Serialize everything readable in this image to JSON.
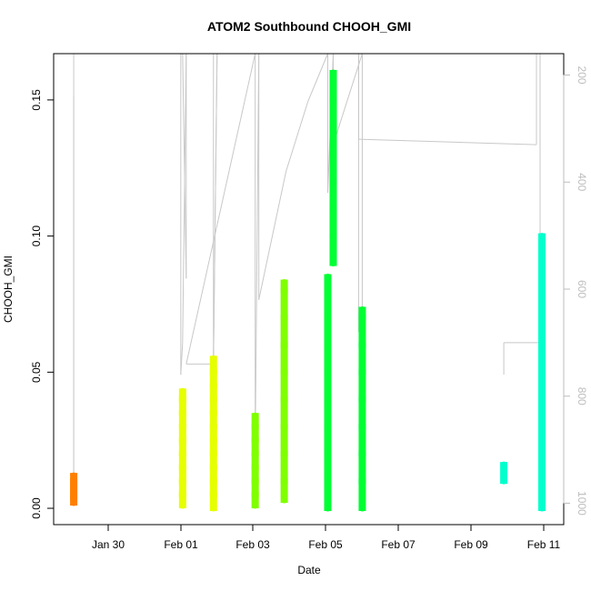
{
  "chart_data": {
    "type": "scatter",
    "title": "ATOM2 Southbound CHOOH_GMI",
    "xlabel": "Date",
    "ylabel": "CHOOH_GMI",
    "x_tick_labels": [
      "Jan 30",
      "Feb 01",
      "Feb 03",
      "Feb 05",
      "Feb 07",
      "Feb 09",
      "Feb 11"
    ],
    "x_ticks_days": [
      0,
      2,
      4,
      6,
      8,
      10,
      12
    ],
    "y_tick_labels": [
      "0.00",
      "0.05",
      "0.10",
      "0.15"
    ],
    "y_ticks": [
      0.0,
      0.05,
      0.1,
      0.15
    ],
    "ylim": [
      -0.006,
      0.167
    ],
    "right_axis": {
      "tick_labels": [
        "200",
        "400",
        "600",
        "800",
        "1000"
      ],
      "ticks": [
        200,
        400,
        600,
        800,
        1000
      ],
      "lim": [
        1040,
        160
      ],
      "color": "#bdbdbd"
    },
    "grid": false,
    "marker": "open-circle",
    "series": [
      {
        "color": "#ff8000",
        "points": [
          [
            -0.95,
            0.002
          ],
          [
            -0.95,
            0.004
          ],
          [
            -0.95,
            0.006
          ],
          [
            -0.95,
            0.008
          ],
          [
            -0.95,
            0.01
          ],
          [
            -0.95,
            0.012
          ]
        ]
      },
      {
        "color": "#e6ff00",
        "points": [
          [
            2.05,
            0.001
          ],
          [
            2.05,
            0.005
          ],
          [
            2.05,
            0.01
          ],
          [
            2.05,
            0.015
          ],
          [
            2.05,
            0.02
          ],
          [
            2.05,
            0.025
          ],
          [
            2.05,
            0.03
          ],
          [
            2.05,
            0.035
          ],
          [
            2.05,
            0.04
          ],
          [
            2.05,
            0.043
          ],
          [
            2.9,
            0.0
          ],
          [
            2.9,
            0.005
          ],
          [
            2.9,
            0.01
          ],
          [
            2.9,
            0.015
          ],
          [
            2.9,
            0.02
          ],
          [
            2.9,
            0.025
          ],
          [
            2.9,
            0.03
          ],
          [
            2.9,
            0.035
          ],
          [
            2.9,
            0.04
          ],
          [
            2.9,
            0.045
          ],
          [
            2.9,
            0.05
          ],
          [
            2.9,
            0.055
          ]
        ]
      },
      {
        "color": "#80ff00",
        "points": [
          [
            4.05,
            0.001
          ],
          [
            4.05,
            0.005
          ],
          [
            4.05,
            0.01
          ],
          [
            4.05,
            0.015
          ],
          [
            4.05,
            0.02
          ],
          [
            4.05,
            0.025
          ],
          [
            4.05,
            0.03
          ],
          [
            4.05,
            0.034
          ],
          [
            4.85,
            0.003
          ],
          [
            4.85,
            0.01
          ],
          [
            4.85,
            0.02
          ],
          [
            4.85,
            0.03
          ],
          [
            4.85,
            0.04
          ],
          [
            4.85,
            0.05
          ],
          [
            4.85,
            0.06
          ],
          [
            4.85,
            0.07
          ],
          [
            4.85,
            0.08
          ],
          [
            4.85,
            0.083
          ]
        ]
      },
      {
        "color": "#00ff33",
        "points": [
          [
            6.05,
            0.0
          ],
          [
            6.05,
            0.01
          ],
          [
            6.05,
            0.02
          ],
          [
            6.05,
            0.03
          ],
          [
            6.05,
            0.04
          ],
          [
            6.05,
            0.05
          ],
          [
            6.05,
            0.06
          ],
          [
            6.05,
            0.07
          ],
          [
            6.05,
            0.08
          ],
          [
            6.05,
            0.085
          ],
          [
            6.2,
            0.09
          ],
          [
            6.2,
            0.1
          ],
          [
            6.2,
            0.11
          ],
          [
            6.2,
            0.12
          ],
          [
            6.2,
            0.13
          ],
          [
            6.2,
            0.14
          ],
          [
            6.2,
            0.15
          ],
          [
            6.2,
            0.16
          ],
          [
            7.0,
            0.0
          ],
          [
            7.0,
            0.01
          ],
          [
            7.0,
            0.02
          ],
          [
            7.0,
            0.03
          ],
          [
            7.0,
            0.04
          ],
          [
            7.0,
            0.05
          ],
          [
            7.0,
            0.06
          ],
          [
            7.0,
            0.07
          ],
          [
            7.0,
            0.073
          ]
        ]
      },
      {
        "color": "#00ffcc",
        "points": [
          [
            10.9,
            0.01
          ],
          [
            10.9,
            0.016
          ],
          [
            11.95,
            0.0
          ],
          [
            11.95,
            0.01
          ],
          [
            11.95,
            0.02
          ],
          [
            11.95,
            0.03
          ],
          [
            11.95,
            0.04
          ],
          [
            11.95,
            0.05
          ],
          [
            11.95,
            0.06
          ],
          [
            11.95,
            0.07
          ],
          [
            11.95,
            0.08
          ],
          [
            11.95,
            0.09
          ],
          [
            11.95,
            0.1
          ]
        ]
      }
    ]
  }
}
